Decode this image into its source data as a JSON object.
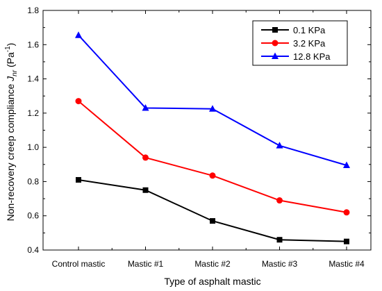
{
  "chart_data": {
    "type": "line",
    "categories": [
      "Control mastic",
      "Mastic #1",
      "Mastic #2",
      "Mastic #3",
      "Mastic #4"
    ],
    "series": [
      {
        "name": "0.1 KPa",
        "values": [
          0.81,
          0.75,
          0.57,
          0.46,
          0.45
        ],
        "color": "#000000",
        "marker": "square"
      },
      {
        "name": "3.2 KPa",
        "values": [
          1.27,
          0.94,
          0.835,
          0.69,
          0.62
        ],
        "color": "#ff0000",
        "marker": "circle"
      },
      {
        "name": "12.8 KPa",
        "values": [
          1.655,
          1.23,
          1.225,
          1.01,
          0.895
        ],
        "color": "#0000ff",
        "marker": "triangle"
      }
    ],
    "xlabel": "Type of asphalt mastic",
    "ylabel": {
      "prefix": "Non-recovery creep compliance ",
      "symbol": "J",
      "subscript": "nr",
      "unit_open": " (Pa",
      "unit_exponent": "-1",
      "unit_close": ")"
    },
    "ylim": [
      0.4,
      1.8
    ],
    "yticks": [
      "0.4",
      "0.6",
      "0.8",
      "1.0",
      "1.2",
      "1.4",
      "1.6",
      "1.8"
    ],
    "grid": false,
    "legend_position": "top-right"
  }
}
